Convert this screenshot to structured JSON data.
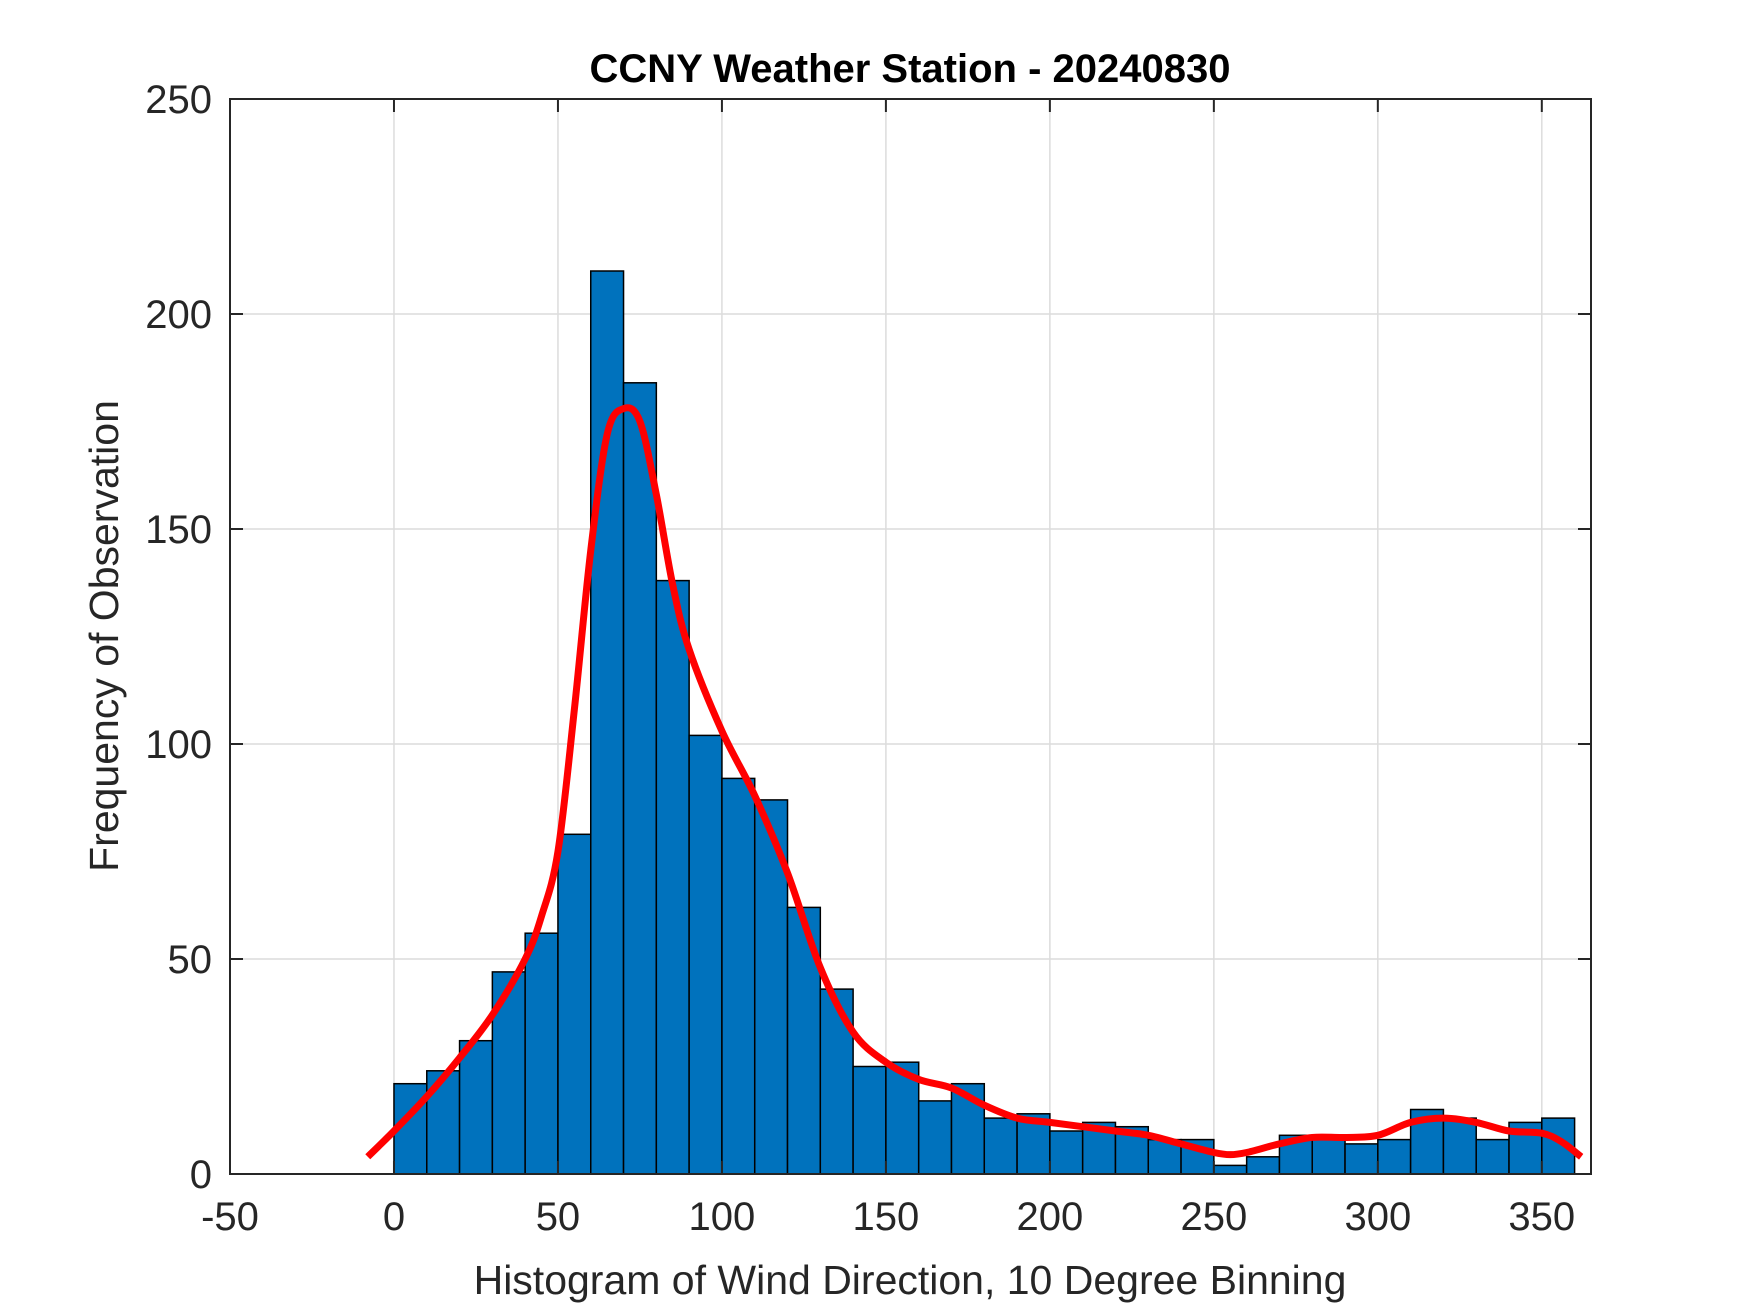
{
  "chart_data": {
    "type": "bar",
    "title": "CCNY Weather Station - 20240830",
    "xlabel": "Histogram of Wind Direction, 10 Degree Binning",
    "ylabel": "Frequency of Observation",
    "xlim": [
      -50,
      365
    ],
    "ylim": [
      0,
      250
    ],
    "xticks": [
      "-50",
      "0",
      "50",
      "100",
      "150",
      "200",
      "250",
      "300",
      "350"
    ],
    "yticks": [
      "0",
      "50",
      "100",
      "150",
      "200",
      "250"
    ],
    "grid": true,
    "bar_color": "#0072BD",
    "bin_width": 10,
    "bin_edges_start": [
      0,
      10,
      20,
      30,
      40,
      50,
      60,
      70,
      80,
      90,
      100,
      110,
      120,
      130,
      140,
      150,
      160,
      170,
      180,
      190,
      200,
      210,
      220,
      230,
      240,
      250,
      260,
      270,
      280,
      290,
      300,
      310,
      320,
      330,
      340,
      350
    ],
    "values": [
      21,
      24,
      31,
      47,
      56,
      79,
      210,
      184,
      138,
      102,
      92,
      87,
      62,
      43,
      25,
      26,
      17,
      21,
      13,
      14,
      10,
      12,
      11,
      8,
      8,
      2,
      4,
      9,
      9,
      7,
      8,
      15,
      13,
      8,
      12,
      13
    ],
    "series": [
      {
        "type": "line",
        "color": "#FF0000",
        "x": [
          -8,
          0,
          10,
          20,
          30,
          40,
          45,
          50,
          55,
          60,
          65,
          70,
          75,
          80,
          85,
          90,
          100,
          110,
          120,
          130,
          140,
          150,
          160,
          170,
          180,
          190,
          200,
          210,
          220,
          230,
          240,
          250,
          255,
          260,
          270,
          280,
          290,
          300,
          310,
          320,
          330,
          340,
          350,
          356,
          362
        ],
        "y": [
          4,
          10,
          18,
          27,
          37,
          50,
          60,
          75,
          108,
          145,
          172,
          178,
          175,
          158,
          137,
          122,
          103,
          88,
          70,
          48,
          33,
          26,
          22,
          20,
          16,
          13,
          12,
          11,
          10,
          9,
          7,
          5,
          4.5,
          5,
          7,
          8.5,
          8.5,
          9,
          12,
          13,
          12,
          10,
          9.5,
          7.5,
          4
        ]
      }
    ]
  }
}
